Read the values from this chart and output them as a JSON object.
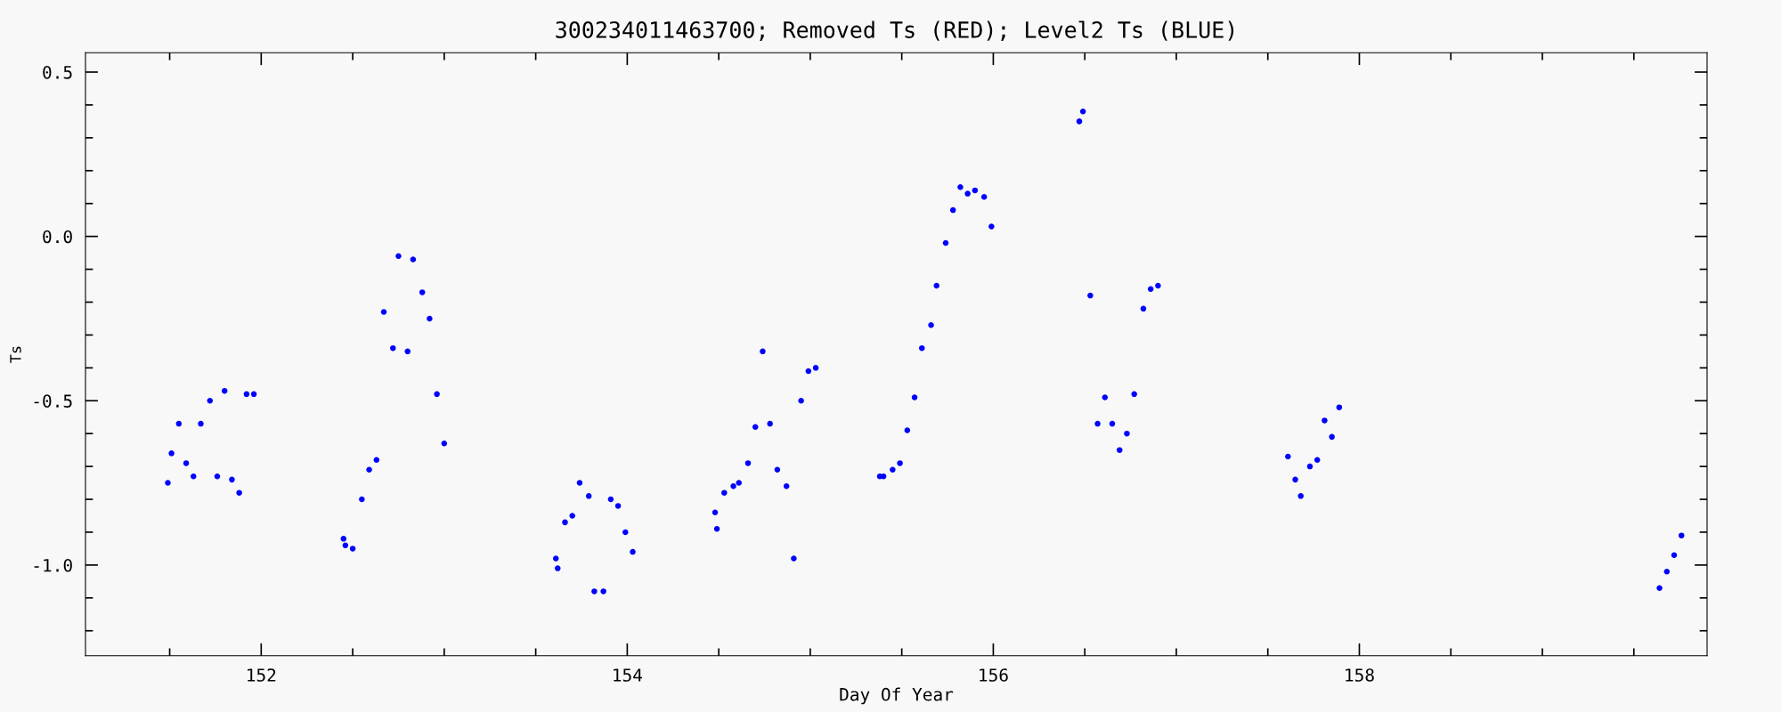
{
  "chart_data": {
    "type": "scatter",
    "title": "300234011463700; Removed Ts (RED); Level2 Ts (BLUE)",
    "xlabel": "Day Of Year",
    "ylabel": "Ts",
    "xlim": [
      151.04,
      159.9
    ],
    "ylim": [
      -1.276,
      0.559
    ],
    "xticks": [
      {
        "value": 151.5,
        "label": null
      },
      {
        "value": 152,
        "label": "152"
      },
      {
        "value": 152.5,
        "label": null
      },
      {
        "value": 153,
        "label": null
      },
      {
        "value": 153.5,
        "label": null
      },
      {
        "value": 154,
        "label": "154"
      },
      {
        "value": 154.5,
        "label": null
      },
      {
        "value": 155,
        "label": null
      },
      {
        "value": 155.5,
        "label": null
      },
      {
        "value": 156,
        "label": "156"
      },
      {
        "value": 156.5,
        "label": null
      },
      {
        "value": 157,
        "label": null
      },
      {
        "value": 157.5,
        "label": null
      },
      {
        "value": 158,
        "label": "158"
      },
      {
        "value": 158.5,
        "label": null
      },
      {
        "value": 159,
        "label": null
      },
      {
        "value": 159.5,
        "label": null
      }
    ],
    "yticks": [
      {
        "value": -1.2,
        "label": null
      },
      {
        "value": -1.1,
        "label": null
      },
      {
        "value": -1.0,
        "label": "-1.0"
      },
      {
        "value": -0.9,
        "label": null
      },
      {
        "value": -0.8,
        "label": null
      },
      {
        "value": -0.7,
        "label": null
      },
      {
        "value": -0.6,
        "label": null
      },
      {
        "value": -0.5,
        "label": "-0.5"
      },
      {
        "value": -0.4,
        "label": null
      },
      {
        "value": -0.3,
        "label": null
      },
      {
        "value": -0.2,
        "label": null
      },
      {
        "value": -0.1,
        "label": null
      },
      {
        "value": 0.0,
        "label": "0.0"
      },
      {
        "value": 0.1,
        "label": null
      },
      {
        "value": 0.2,
        "label": null
      },
      {
        "value": 0.3,
        "label": null
      },
      {
        "value": 0.4,
        "label": null
      },
      {
        "value": 0.5,
        "label": "0.5"
      }
    ],
    "grid": false,
    "legend": false,
    "marker": "circle",
    "series": [
      {
        "color": "#0000ff",
        "x": [
          151.49,
          151.51,
          151.55,
          151.59,
          151.63,
          151.67,
          151.72,
          151.76,
          151.8,
          151.84,
          151.88,
          151.92,
          151.96,
          152.45,
          152.46,
          152.5,
          152.55,
          152.59,
          152.63,
          152.67,
          152.72,
          152.75,
          152.8,
          152.83,
          152.88,
          152.92,
          152.96,
          153.0,
          153.61,
          153.62,
          153.66,
          153.7,
          153.74,
          153.79,
          153.82,
          153.87,
          153.91,
          153.95,
          153.99,
          154.03,
          154.48,
          154.49,
          154.53,
          154.58,
          154.61,
          154.66,
          154.7,
          154.74,
          154.78,
          154.82,
          154.87,
          154.91,
          154.95,
          154.99,
          155.03,
          155.38,
          155.4,
          155.45,
          155.49,
          155.53,
          155.57,
          155.61,
          155.66,
          155.69,
          155.74,
          155.78,
          155.82,
          155.86,
          155.9,
          155.95,
          155.99,
          156.47,
          156.49,
          156.53,
          156.57,
          156.61,
          156.65,
          156.69,
          156.73,
          156.77,
          156.82,
          156.86,
          156.9,
          157.61,
          157.65,
          157.68,
          157.73,
          157.77,
          157.81,
          157.85,
          157.89,
          159.64,
          159.68,
          159.72,
          159.76
        ],
        "values": [
          -0.75,
          -0.66,
          -0.57,
          -0.69,
          -0.73,
          -0.57,
          -0.5,
          -0.73,
          -0.47,
          -0.74,
          -0.78,
          -0.48,
          -0.48,
          -0.92,
          -0.94,
          -0.95,
          -0.8,
          -0.71,
          -0.68,
          -0.23,
          -0.34,
          -0.06,
          -0.35,
          -0.07,
          -0.17,
          -0.25,
          -0.48,
          -0.63,
          -0.98,
          -1.01,
          -0.87,
          -0.85,
          -0.75,
          -0.79,
          -1.08,
          -1.08,
          -0.8,
          -0.82,
          -0.9,
          -0.96,
          -0.84,
          -0.89,
          -0.78,
          -0.76,
          -0.75,
          -0.69,
          -0.58,
          -0.35,
          -0.57,
          -0.71,
          -0.76,
          -0.98,
          -0.5,
          -0.41,
          -0.4,
          -0.73,
          -0.73,
          -0.71,
          -0.69,
          -0.59,
          -0.49,
          -0.34,
          -0.27,
          -0.15,
          -0.02,
          0.08,
          0.15,
          0.13,
          0.14,
          0.12,
          0.03,
          0.35,
          0.38,
          -0.18,
          -0.57,
          -0.49,
          -0.57,
          -0.65,
          -0.6,
          -0.48,
          -0.22,
          -0.16,
          -0.15,
          -0.67,
          -0.74,
          -0.79,
          -0.7,
          -0.68,
          -0.56,
          -0.61,
          -0.52,
          -1.07,
          -1.02,
          -0.97,
          -0.91
        ]
      }
    ]
  }
}
